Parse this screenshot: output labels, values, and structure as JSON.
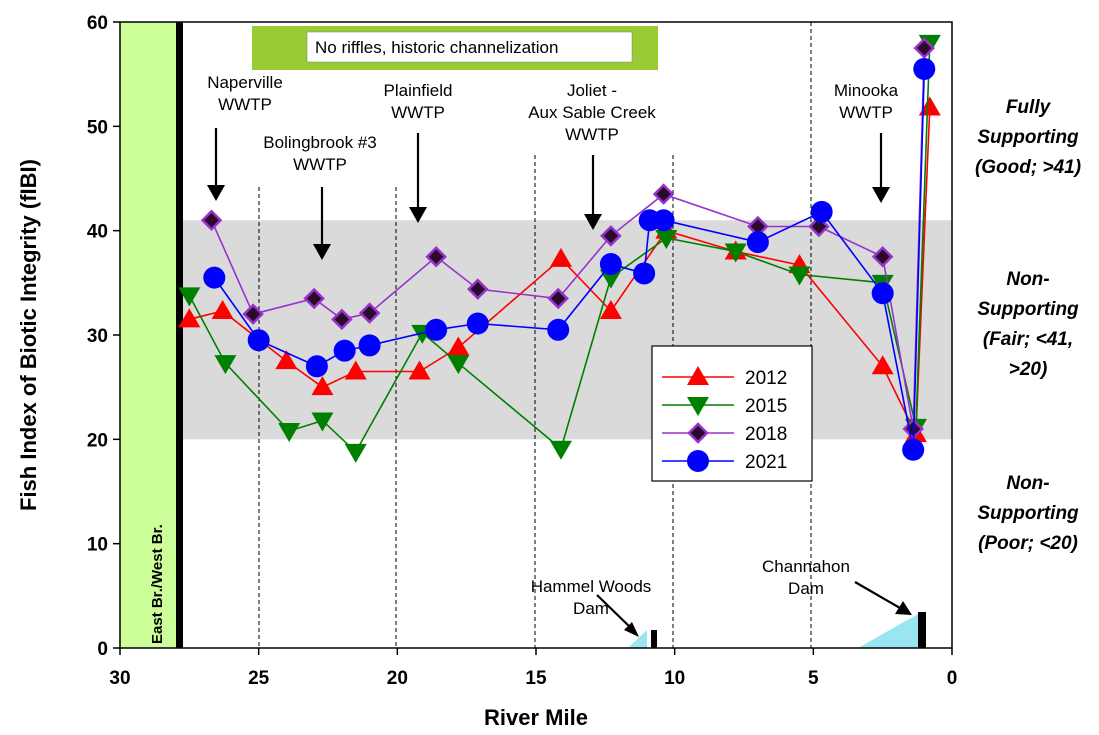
{
  "chart_data": {
    "type": "line",
    "xlabel": "River Mile",
    "ylabel": "Fish Index of Biotic Integrity (fIBI)",
    "xlim": [
      30,
      0
    ],
    "ylim": [
      0,
      60
    ],
    "x_axis_reversed": true,
    "xticks": [
      30,
      25,
      20,
      15,
      10,
      5,
      0
    ],
    "yticks": [
      0,
      10,
      20,
      30,
      40,
      50,
      60
    ],
    "grid": false,
    "legend_position": "center-right",
    "shaded_band": [
      20,
      41
    ],
    "series": [
      {
        "name": "2012",
        "color": "#ff0000",
        "marker": "triangle-up",
        "points": [
          [
            27.5,
            31.5
          ],
          [
            26.3,
            32.3
          ],
          [
            24.0,
            27.5
          ],
          [
            22.7,
            25.0
          ],
          [
            21.5,
            26.5
          ],
          [
            19.2,
            26.5
          ],
          [
            17.8,
            28.8
          ],
          [
            14.1,
            37.3
          ],
          [
            12.3,
            32.3
          ],
          [
            10.3,
            40.0
          ],
          [
            7.8,
            38.0
          ],
          [
            5.5,
            36.7
          ],
          [
            2.5,
            27.0
          ],
          [
            1.3,
            20.5
          ],
          [
            0.8,
            51.8
          ]
        ]
      },
      {
        "name": "2015",
        "color": "#008000",
        "marker": "triangle-down",
        "points": [
          [
            27.5,
            33.8
          ],
          [
            26.2,
            27.3
          ],
          [
            23.9,
            20.8
          ],
          [
            22.7,
            21.8
          ],
          [
            21.5,
            18.8
          ],
          [
            19.1,
            30.2
          ],
          [
            17.8,
            27.3
          ],
          [
            14.1,
            19.1
          ],
          [
            12.3,
            35.5
          ],
          [
            10.3,
            39.3
          ],
          [
            7.8,
            38.0
          ],
          [
            5.5,
            35.8
          ],
          [
            2.5,
            35.0
          ],
          [
            1.3,
            21.2
          ],
          [
            0.8,
            58.0
          ]
        ]
      },
      {
        "name": "2018",
        "color": "#9932cc",
        "marker": "diamond",
        "points": [
          [
            26.7,
            41.0
          ],
          [
            25.2,
            32.0
          ],
          [
            23.0,
            33.5
          ],
          [
            22.0,
            31.5
          ],
          [
            21.0,
            32.1
          ],
          [
            18.6,
            37.5
          ],
          [
            17.1,
            34.4
          ],
          [
            14.2,
            33.5
          ],
          [
            12.3,
            39.5
          ],
          [
            10.4,
            43.5
          ],
          [
            7.0,
            40.4
          ],
          [
            4.8,
            40.4
          ],
          [
            2.5,
            37.5
          ],
          [
            1.4,
            21.0
          ],
          [
            1.0,
            57.5
          ]
        ]
      },
      {
        "name": "2021",
        "color": "#0000ff",
        "marker": "circle",
        "points": [
          [
            26.6,
            35.5
          ],
          [
            25.0,
            29.5
          ],
          [
            22.9,
            27.0
          ],
          [
            21.9,
            28.5
          ],
          [
            21.0,
            29.0
          ],
          [
            18.6,
            30.5
          ],
          [
            17.1,
            31.1
          ],
          [
            14.2,
            30.5
          ],
          [
            12.3,
            36.8
          ],
          [
            11.1,
            35.9
          ],
          [
            10.9,
            41.0
          ],
          [
            10.4,
            41.0
          ],
          [
            7.0,
            38.9
          ],
          [
            4.7,
            41.8
          ],
          [
            2.5,
            34.0
          ],
          [
            1.4,
            19.0
          ],
          [
            1.0,
            55.5
          ]
        ]
      }
    ],
    "annotations": {
      "banner": "No riffles, historic channelization",
      "naperville": [
        "Naperville",
        "WWTP"
      ],
      "bolingbrook": [
        "Bolingbrook #3",
        "WWTP"
      ],
      "plainfield": [
        "Plainfield",
        "WWTP"
      ],
      "joliet": [
        "Joliet -",
        "Aux Sable Creek",
        "WWTP"
      ],
      "minooka": [
        "Minooka",
        "WWTP"
      ],
      "hammel": [
        "Hammel Woods",
        "Dam"
      ],
      "channahon": [
        "Channahon",
        "Dam"
      ],
      "branch": "East Br./West Br."
    },
    "zones": {
      "good": [
        "Fully",
        "Supporting",
        "(Good; >41)"
      ],
      "fair": [
        "Non-",
        "Supporting",
        "(Fair; <41,",
        ">20)"
      ],
      "poor": [
        "Non-",
        "Supporting",
        "(Poor; <20)"
      ]
    }
  }
}
